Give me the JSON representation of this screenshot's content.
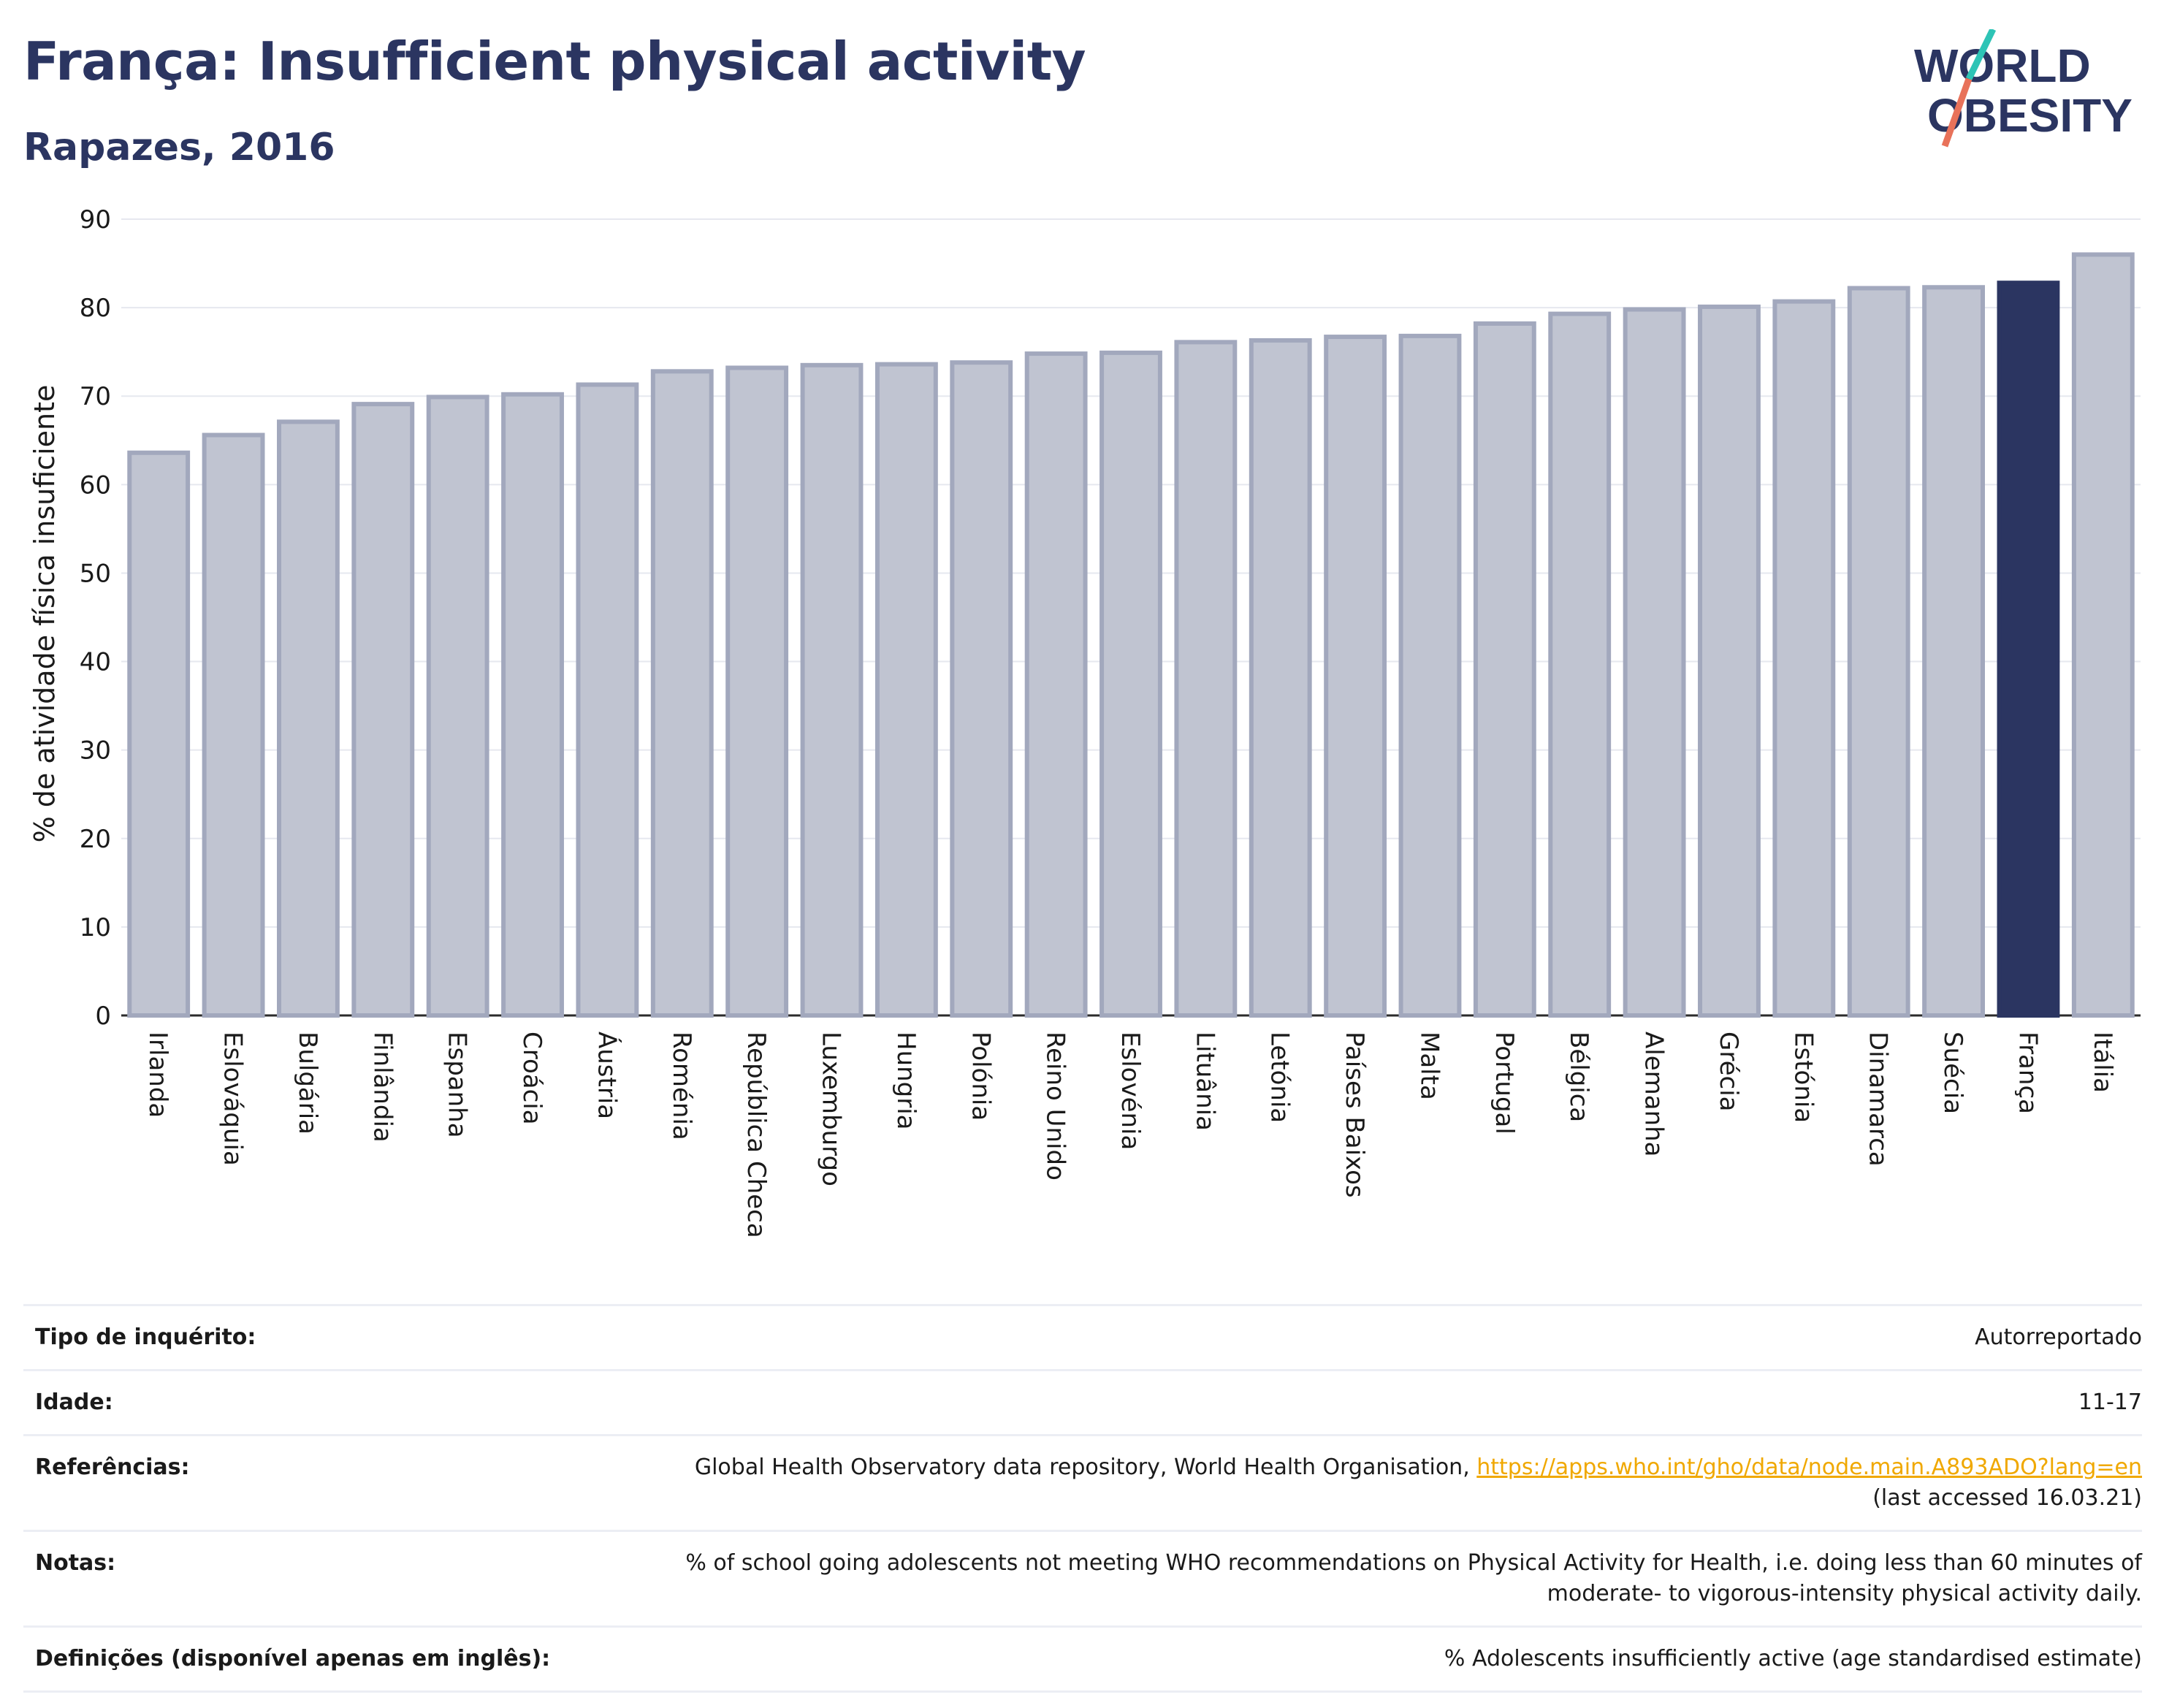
{
  "header": {
    "title": "França: Insufficient physical activity",
    "subtitle": "Rapazes, 2016"
  },
  "logo": {
    "line1": "WORLD",
    "line2": "OBESITY"
  },
  "colors": {
    "bar_default": "#c0c4d1",
    "bar_default_stroke": "#a2a8bd",
    "bar_highlight": "#2b3561",
    "title": "#2b3561",
    "logo_teal": "#2ec4b6",
    "logo_coral": "#e8725a"
  },
  "chart_data": {
    "type": "bar",
    "ylabel": "% de atividade física insuficiente",
    "xlabel": "",
    "ylim": [
      0,
      90
    ],
    "yticks": [
      0,
      10,
      20,
      30,
      40,
      50,
      60,
      70,
      80,
      90
    ],
    "grid": true,
    "highlight": "França",
    "categories": [
      "Irlanda",
      "Eslováquia",
      "Bulgária",
      "Finlândia",
      "Espanha",
      "Croácia",
      "Áustria",
      "Roménia",
      "República Checa",
      "Luxemburgo",
      "Hungria",
      "Polónia",
      "Reino Unido",
      "Eslovénia",
      "Lituânia",
      "Letónia",
      "Países Baixos",
      "Malta",
      "Portugal",
      "Bélgica",
      "Alemanha",
      "Grécia",
      "Estónia",
      "Dinamarca",
      "Suécia",
      "França",
      "Itália"
    ],
    "values": [
      63.6,
      65.6,
      67.1,
      69.1,
      69.9,
      70.2,
      71.3,
      72.8,
      73.2,
      73.5,
      73.6,
      73.8,
      74.8,
      74.9,
      76.1,
      76.3,
      76.7,
      76.8,
      78.2,
      79.3,
      79.8,
      80.1,
      80.7,
      82.2,
      82.3,
      82.8,
      86.0
    ]
  },
  "info": [
    {
      "key": "Tipo de inquérito:",
      "value": "Autorreportado"
    },
    {
      "key": "Idade:",
      "value": "11-17"
    },
    {
      "key": "Referências:",
      "value": "Global Health Observatory data repository, World Health Organisation, ",
      "link": "https://apps.who.int/gho/data/node.main.A893ADO?lang=en",
      "value2": "(last accessed 16.03.21)"
    },
    {
      "key": "Notas:",
      "value": "% of school going adolescents not meeting WHO recommendations on Physical Activity for Health, i.e. doing less than 60 minutes of",
      "value2": "moderate- to vigorous-intensity physical activity daily."
    },
    {
      "key": "Definições (disponível apenas em inglês):",
      "value": "% Adolescents insufficiently active (age standardised estimate)"
    }
  ]
}
